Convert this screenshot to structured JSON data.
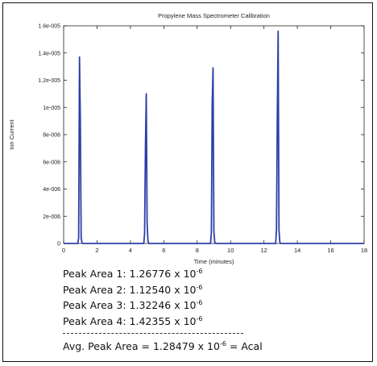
{
  "chart_data": {
    "type": "line",
    "title": "Propylene Mass Spectrometer Calibration",
    "xlabel": "Time (minutes)",
    "ylabel": "Ion Current",
    "xlim": [
      0,
      18
    ],
    "ylim": [
      0,
      1.6e-05
    ],
    "grid": false,
    "x_ticks": [
      "0",
      "2",
      "4",
      "6",
      "8",
      "10",
      "12",
      "14",
      "16",
      "18"
    ],
    "y_ticks": [
      "0",
      "2e-006",
      "4e-006",
      "6e-006",
      "8e-006",
      "1e-005",
      "1.2e-005",
      "1.4e-005",
      "1.6e-005"
    ],
    "series": [
      {
        "color": "#2b3fa8",
        "x": [
          0,
          0.85,
          0.9,
          0.95,
          1.0,
          1.05,
          1.1,
          1.15,
          4.8,
          4.85,
          4.9,
          4.95,
          5.0,
          5.05,
          5.1,
          8.8,
          8.85,
          8.9,
          8.95,
          9.0,
          9.05,
          9.1,
          12.7,
          12.75,
          12.8,
          12.85,
          12.9,
          12.95,
          13.0,
          16.0,
          18.0
        ],
        "y": [
          0,
          0,
          4e-07,
          1.37e-05,
          9e-06,
          4e-07,
          5e-08,
          0,
          0,
          7e-07,
          7e-06,
          1.1e-05,
          1.5e-06,
          2e-07,
          0,
          0,
          8e-07,
          1.02e-05,
          1.29e-05,
          9e-07,
          1e-07,
          0,
          0,
          1e-06,
          9.2e-06,
          1.56e-05,
          1e-06,
          1e-07,
          0,
          0,
          0
        ]
      }
    ]
  },
  "notes": {
    "peak_label": "Peak Area",
    "times": "x 10",
    "exp": "-6",
    "peaks": [
      {
        "num": "1",
        "value": "1.26776"
      },
      {
        "num": "2",
        "value": "1.12540"
      },
      {
        "num": "3",
        "value": "1.32246"
      },
      {
        "num": "4",
        "value": "1.42355"
      }
    ],
    "avg_label": "Avg. Peak Area",
    "avg_value": "1.28479",
    "avg_suffix": "= Acal"
  }
}
